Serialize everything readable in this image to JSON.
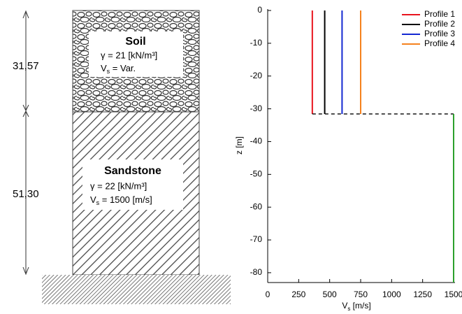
{
  "diagram": {
    "vs_symbol": "V",
    "vs_subscript": "s",
    "layers": [
      {
        "thickness": "31,57",
        "name": "Soil",
        "unit_weight": "γ = 21 [kN/m³]",
        "velocity": " = Var."
      },
      {
        "thickness": "51,30",
        "name": "Sandstone",
        "unit_weight": "γ = 22 [kN/m³]",
        "velocity": " = 1500 [m/s]"
      }
    ]
  },
  "chart_data": {
    "type": "line",
    "xlabel_symbol": "V",
    "xlabel_subscript": "s",
    "xlabel_unit": " [m/s]",
    "ylabel": "z [m]",
    "xlim": [
      0,
      1500
    ],
    "xticks": [
      0,
      250,
      500,
      750,
      1000,
      1250,
      1500
    ],
    "ylim": [
      -83,
      0
    ],
    "yticks": [
      0,
      -10,
      -20,
      -30,
      -40,
      -50,
      -60,
      -70,
      -80
    ],
    "legend": "upper right",
    "series": [
      {
        "name": "Profile 1",
        "color": "#e8141e",
        "x": [
          360,
          360
        ],
        "values": [
          0,
          -31.57
        ]
      },
      {
        "name": "Profile 2",
        "color": "#000000",
        "x": [
          460,
          460
        ],
        "values": [
          0,
          -31.57
        ]
      },
      {
        "name": "Profile 3",
        "color": "#1428d2",
        "x": [
          600,
          600
        ],
        "values": [
          0,
          -31.57
        ]
      },
      {
        "name": "Profile 4",
        "color": "#f5821e",
        "x": [
          750,
          750
        ],
        "values": [
          0,
          -31.57
        ]
      },
      {
        "color": "#000000",
        "dash": true,
        "x": [
          360,
          1500
        ],
        "values": [
          -31.57,
          -31.57
        ]
      },
      {
        "color": "#2ca02c",
        "x": [
          1500,
          1500
        ],
        "values": [
          -31.57,
          -83
        ]
      }
    ]
  }
}
